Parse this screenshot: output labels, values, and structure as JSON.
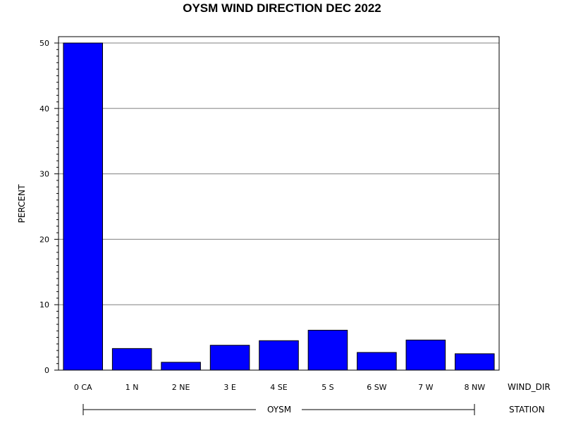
{
  "chart_data": {
    "type": "bar",
    "title": "OYSM WIND DIRECTION DEC 2022",
    "ylabel": "PERCENT",
    "xlabel": "WIND_DIR",
    "group_axis_label": "STATION",
    "group_name": "OYSM",
    "categories": [
      "0 CA",
      "1 N",
      "2 NE",
      "3 E",
      "4 SE",
      "5 S",
      "6 SW",
      "7 W",
      "8 NW"
    ],
    "values": [
      50.0,
      3.3,
      1.2,
      3.8,
      4.5,
      6.1,
      2.7,
      4.6,
      2.5
    ],
    "ylim": [
      0,
      50
    ],
    "yticks": [
      "0",
      "10",
      "20",
      "30",
      "40",
      "50"
    ],
    "grid": true,
    "bar_color": "#0000ff"
  }
}
